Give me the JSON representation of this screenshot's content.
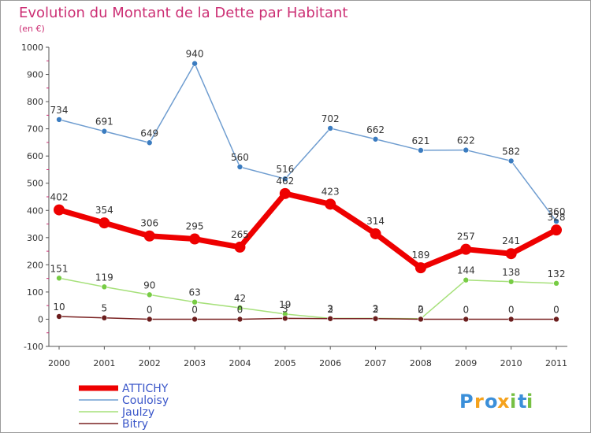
{
  "chart_data": {
    "type": "line",
    "title": "Evolution du Montant de la Dette par Habitant",
    "subtitle": "(en €)",
    "categories": [
      "2000",
      "2001",
      "2002",
      "2003",
      "2004",
      "2005",
      "2006",
      "2007",
      "2008",
      "2009",
      "2010",
      "2011"
    ],
    "ylim": [
      -100,
      1000
    ],
    "yticks": [
      -100,
      0,
      100,
      200,
      300,
      400,
      500,
      600,
      700,
      800,
      900,
      1000
    ],
    "grid": false,
    "legend_position": "bottom-left",
    "series": [
      {
        "name": "Couloisy",
        "values": [
          734,
          691,
          649,
          940,
          560,
          516,
          702,
          662,
          621,
          622,
          582,
          360
        ],
        "color": "#6f9dd0",
        "marker": "#3b7cc0",
        "label_color": "#333333"
      },
      {
        "name": "Jaulzy",
        "values": [
          151,
          119,
          90,
          63,
          42,
          19,
          3,
          3,
          2,
          144,
          138,
          132
        ],
        "color": "#a6e07a",
        "marker": "#77cc44",
        "label_color": "#333333"
      },
      {
        "name": "Bitry",
        "values": [
          10,
          5,
          0,
          0,
          0,
          3,
          2,
          2,
          0,
          0,
          0,
          0
        ],
        "color": "#7a2222",
        "marker": "#6b1d1d",
        "label_color": "#333333"
      },
      {
        "name": "ATTICHY",
        "values": [
          402,
          354,
          306,
          295,
          265,
          462,
          423,
          314,
          189,
          257,
          241,
          328
        ],
        "color": "#ee0000",
        "marker": "#ee0000",
        "label_color": "#333333"
      }
    ],
    "legend": [
      {
        "name": "ATTICHY",
        "color": "#ee0000"
      },
      {
        "name": "Couloisy",
        "color": "#6f9dd0"
      },
      {
        "name": "Jaulzy",
        "color": "#a6e07a"
      },
      {
        "name": "Bitry",
        "color": "#7a2222"
      }
    ]
  },
  "brand": {
    "letters": [
      "P",
      "r",
      "o",
      "x",
      "i",
      "t",
      "i"
    ],
    "colors": [
      "#3b8fd9",
      "#f5a21c",
      "#3b8fd9",
      "#f5a21c",
      "#77c043",
      "#3b8fd9",
      "#77c043"
    ]
  },
  "colors": {
    "title": "#cc2f74",
    "axis": "#333333",
    "tick_mark": "#cc2f74"
  }
}
